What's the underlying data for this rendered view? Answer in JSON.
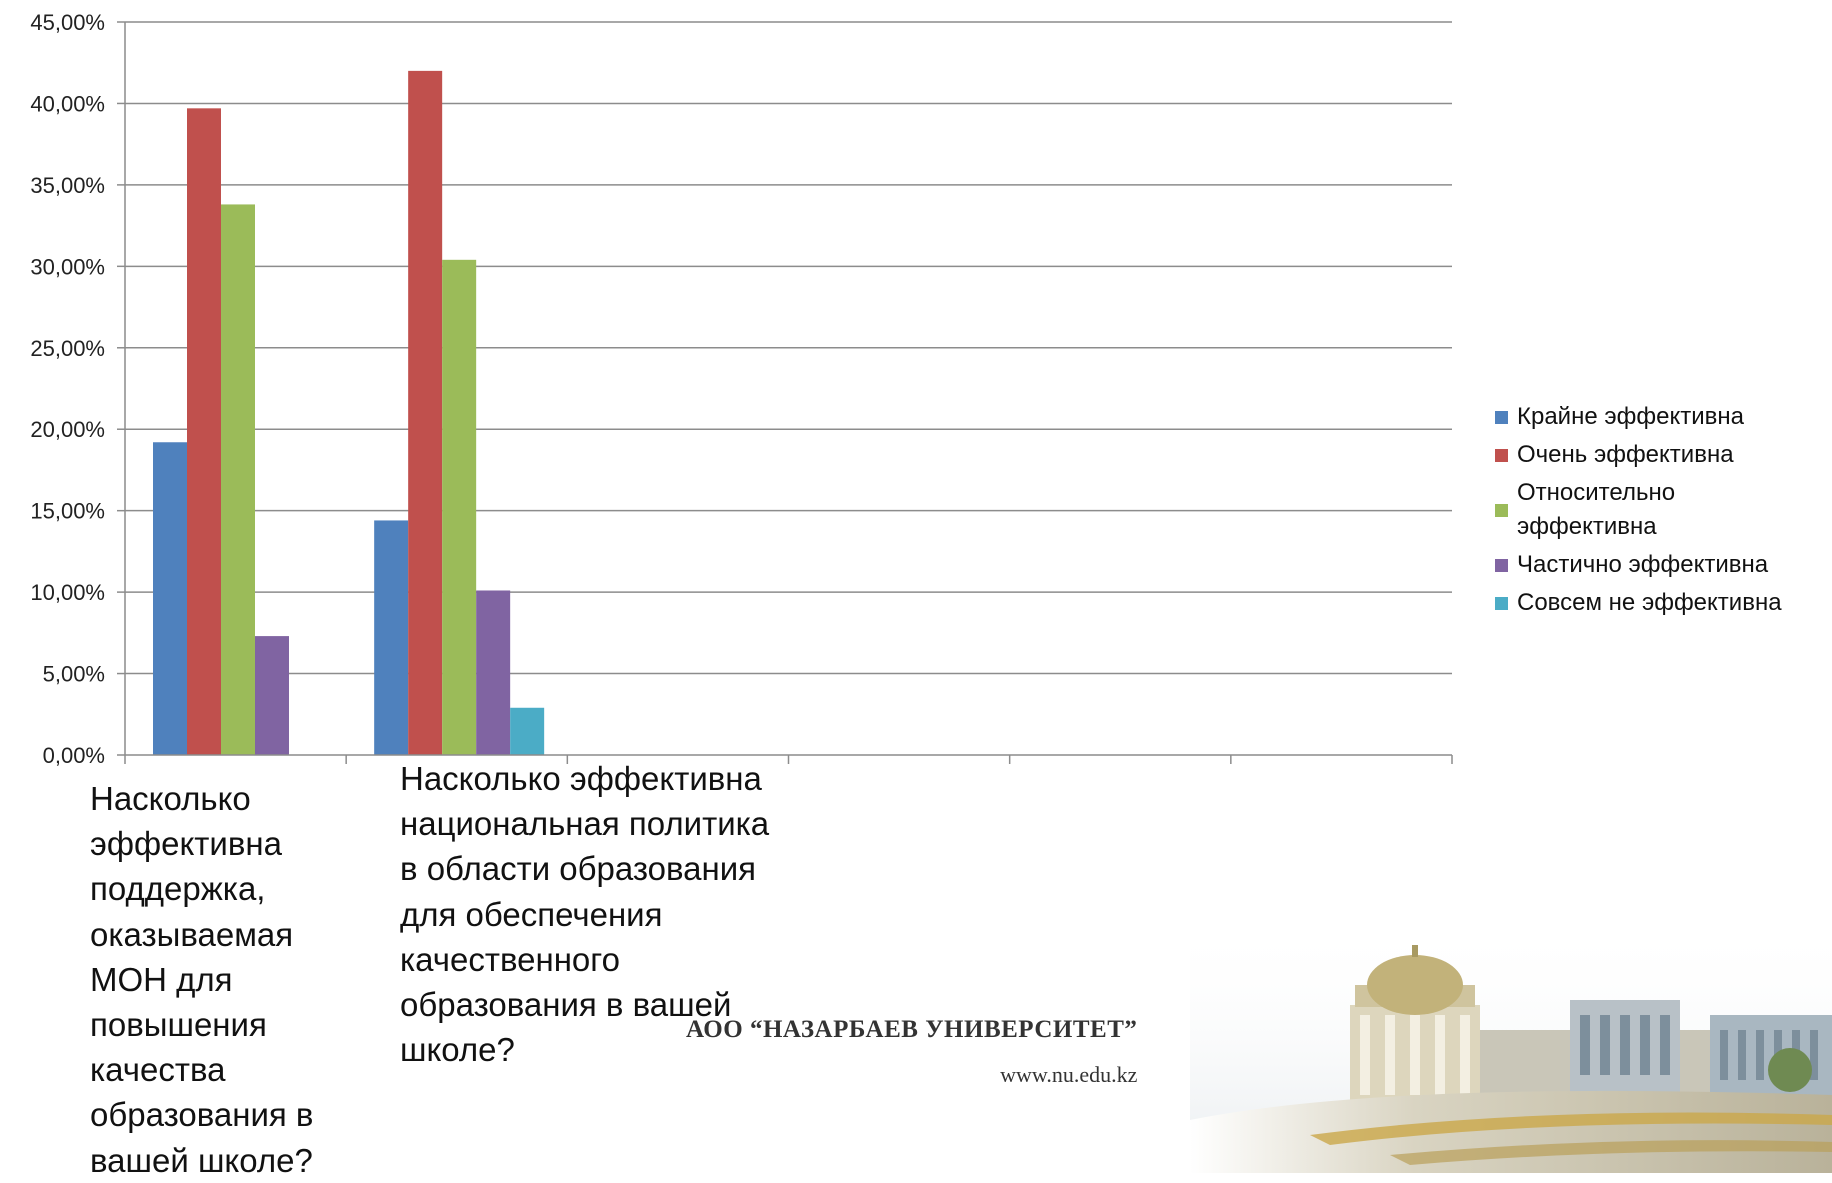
{
  "chart_data": {
    "type": "bar",
    "categories": [
      "Насколько эффективна поддержка, оказываемая МОН для повышения качества образования в вашей школе?",
      "Насколько эффективна национальная политика в области образования для обеспечения качественного образования в вашей школе?",
      "",
      "",
      "",
      ""
    ],
    "series": [
      {
        "name": "Крайне эффективна",
        "color": "#4F81BD",
        "values": [
          19.2,
          14.4,
          null,
          null,
          null,
          null
        ]
      },
      {
        "name": "Очень эффективна",
        "color": "#C0504D",
        "values": [
          39.7,
          42.0,
          null,
          null,
          null,
          null
        ]
      },
      {
        "name": "Относительно эффективна",
        "color": "#9BBB59",
        "values": [
          33.8,
          30.4,
          null,
          null,
          null,
          null
        ]
      },
      {
        "name": "Частично эффективна",
        "color": "#8064A2",
        "values": [
          7.3,
          10.1,
          null,
          null,
          null,
          null
        ]
      },
      {
        "name": "Совсем не эффективна",
        "color": "#4BACC6",
        "values": [
          0,
          2.9,
          null,
          null,
          null,
          null
        ]
      }
    ],
    "ylim": [
      0,
      45
    ],
    "yticks": [
      "0,00%",
      "5,00%",
      "10,00%",
      "15,00%",
      "20,00%",
      "25,00%",
      "30,00%",
      "35,00%",
      "40,00%",
      "45,00%"
    ],
    "grid": true,
    "legend_position": "right"
  },
  "footer": {
    "university": "АОО “НАЗАРБАЕВ УНИВЕРСИТЕТ”",
    "url": "www.nu.edu.kz"
  }
}
